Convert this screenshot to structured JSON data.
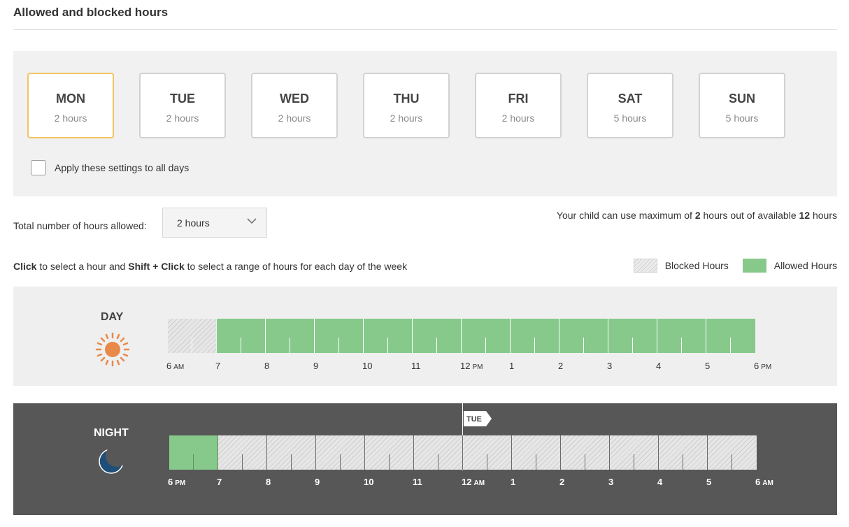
{
  "page": {
    "title": "Allowed and blocked hours"
  },
  "days": [
    {
      "name": "MON",
      "hours": "2 hours",
      "selected": true
    },
    {
      "name": "TUE",
      "hours": "2 hours",
      "selected": false
    },
    {
      "name": "WED",
      "hours": "2 hours",
      "selected": false
    },
    {
      "name": "THU",
      "hours": "2 hours",
      "selected": false
    },
    {
      "name": "FRI",
      "hours": "2 hours",
      "selected": false
    },
    {
      "name": "SAT",
      "hours": "5 hours",
      "selected": false
    },
    {
      "name": "SUN",
      "hours": "5 hours",
      "selected": false
    }
  ],
  "apply_all": {
    "label": "Apply these settings to all days",
    "checked": false
  },
  "total": {
    "label": "Total number of hours allowed:",
    "selected": "2 hours",
    "icon": "chevron-down-icon"
  },
  "max_info": {
    "prefix": "Your child can use maximum of ",
    "allowed": "2",
    "middle": " hours out of available ",
    "available": "12",
    "suffix": " hours"
  },
  "instruction": {
    "click": "Click",
    "text1": " to select a hour and ",
    "shift_click": "Shift + Click",
    "text2": " to select a range of hours for each day of the week"
  },
  "legend": {
    "blocked": "Blocked Hours",
    "allowed": "Allowed Hours"
  },
  "day_timeline": {
    "label": "DAY",
    "icon": "sun-icon",
    "hours": [
      "blocked",
      "allowed",
      "allowed",
      "allowed",
      "allowed",
      "allowed",
      "allowed",
      "allowed",
      "allowed",
      "allowed",
      "allowed",
      "allowed"
    ],
    "ticks": [
      {
        "n": "6",
        "s": "AM"
      },
      {
        "n": "7",
        "s": ""
      },
      {
        "n": "8",
        "s": ""
      },
      {
        "n": "9",
        "s": ""
      },
      {
        "n": "10",
        "s": ""
      },
      {
        "n": "11",
        "s": ""
      },
      {
        "n": "12",
        "s": "PM"
      },
      {
        "n": "1",
        "s": ""
      },
      {
        "n": "2",
        "s": ""
      },
      {
        "n": "3",
        "s": ""
      },
      {
        "n": "4",
        "s": ""
      },
      {
        "n": "5",
        "s": ""
      },
      {
        "n": "6",
        "s": "PM"
      }
    ]
  },
  "night_timeline": {
    "label": "NIGHT",
    "icon": "moon-icon",
    "hours": [
      "allowed",
      "blocked",
      "blocked",
      "blocked",
      "blocked",
      "blocked",
      "blocked",
      "blocked",
      "blocked",
      "blocked",
      "blocked",
      "blocked"
    ],
    "ticks": [
      {
        "n": "6",
        "s": "PM"
      },
      {
        "n": "7",
        "s": ""
      },
      {
        "n": "8",
        "s": ""
      },
      {
        "n": "9",
        "s": ""
      },
      {
        "n": "10",
        "s": ""
      },
      {
        "n": "11",
        "s": ""
      },
      {
        "n": "12",
        "s": "AM"
      },
      {
        "n": "1",
        "s": ""
      },
      {
        "n": "2",
        "s": ""
      },
      {
        "n": "3",
        "s": ""
      },
      {
        "n": "4",
        "s": ""
      },
      {
        "n": "5",
        "s": ""
      },
      {
        "n": "6",
        "s": "AM"
      }
    ],
    "marker": "TUE"
  },
  "colors": {
    "allowed": "#87c98b",
    "selected_border": "#f0c463",
    "night_bg": "#575757",
    "sun": "#e8894a",
    "moon": "#1e4f7a"
  }
}
